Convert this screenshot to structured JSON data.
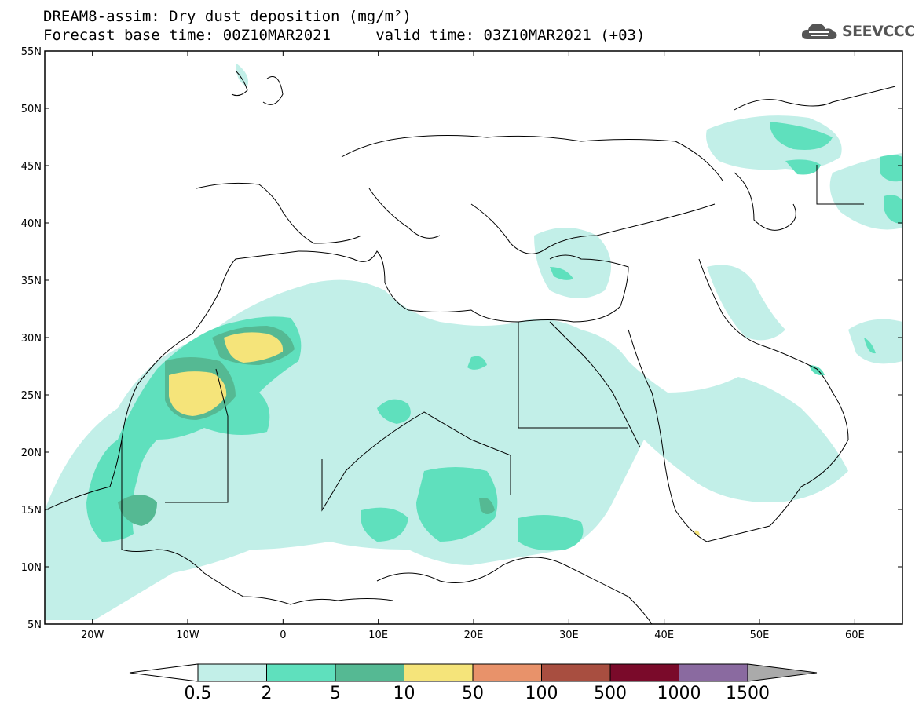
{
  "title": {
    "line1": "DREAM8-assim: Dry dust deposition (mg/m²)",
    "line2": "Forecast base time: 00Z10MAR2021     valid time: 03Z10MAR2021 (+03)"
  },
  "logo": {
    "text": "SEEVCCC",
    "icon": "cloud-icon"
  },
  "map": {
    "lon_range": [
      -25,
      65
    ],
    "lat_range": [
      5,
      55
    ],
    "lat_ticks": [
      "55N",
      "50N",
      "45N",
      "40N",
      "35N",
      "30N",
      "25N",
      "20N",
      "15N",
      "10N",
      "5N"
    ],
    "lon_ticks": [
      "20W",
      "10W",
      "0",
      "10E",
      "20E",
      "30E",
      "40E",
      "50E",
      "60E"
    ]
  },
  "colorbar": {
    "labels": [
      "0.5",
      "2",
      "5",
      "10",
      "50",
      "100",
      "500",
      "1000",
      "1500"
    ],
    "colors": [
      "#c2efe8",
      "#5fe0bd",
      "#55b993",
      "#f5e47a",
      "#e8926a",
      "#a84e40",
      "#7a0a2a",
      "#8a6aa0",
      "#aaaaaa"
    ]
  },
  "regions": [
    {
      "name": "lowest-band",
      "level": "0.5-2",
      "color": "#c2efe8"
    },
    {
      "name": "low-band",
      "level": "2-5",
      "color": "#5fe0bd"
    },
    {
      "name": "mid-band",
      "level": "5-10",
      "color": "#55b993"
    },
    {
      "name": "high-band",
      "level": "10-50",
      "color": "#f5e47a"
    }
  ]
}
